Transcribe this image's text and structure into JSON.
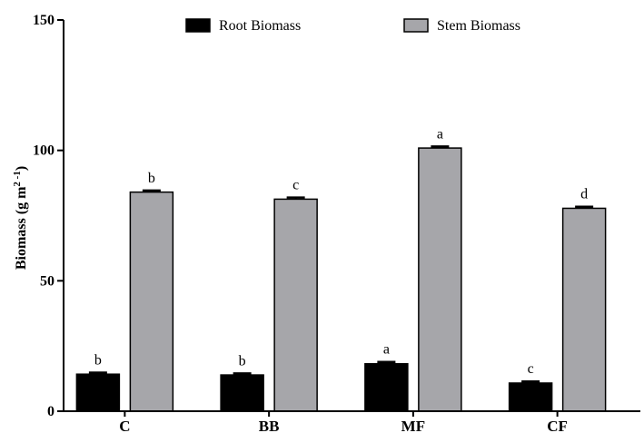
{
  "chart_data": {
    "type": "bar",
    "title": "",
    "xlabel": "",
    "ylabel": "Biomass (g m",
    "ylabel_sup": "2 -1",
    "ylabel_end": ")",
    "ylim": [
      0,
      150
    ],
    "yticks": [
      0,
      50,
      100,
      150
    ],
    "categories": [
      "C",
      "BB",
      "MF",
      "CF"
    ],
    "series": [
      {
        "name": "Root Biomass",
        "color": "#000000",
        "values": [
          14.2,
          13.9,
          18.2,
          10.8
        ],
        "errors": [
          0.6,
          0.6,
          0.7,
          0.6
        ],
        "letters": [
          "b",
          "b",
          "a",
          "c"
        ]
      },
      {
        "name": "Stem Biomass",
        "color": "#a6a6aa",
        "values": [
          84.0,
          81.3,
          100.9,
          77.8
        ],
        "errors": [
          0.6,
          0.6,
          0.6,
          0.6
        ],
        "letters": [
          "b",
          "c",
          "a",
          "d"
        ]
      }
    ],
    "legend_position": "top"
  }
}
